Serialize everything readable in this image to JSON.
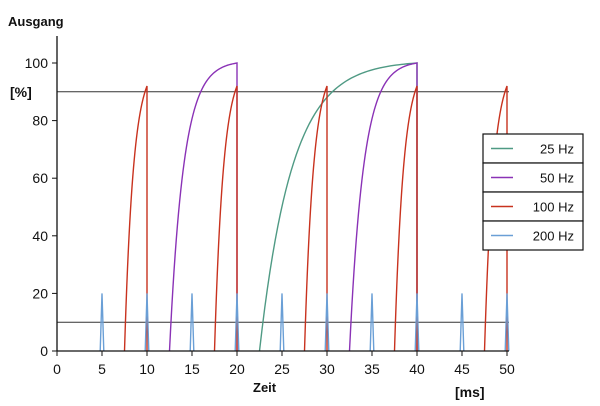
{
  "chart_data": {
    "type": "line",
    "title": "",
    "ylabel_top": "Ausgang",
    "ylabel_unit": "[%]",
    "xlabel": "Zeit",
    "xlabel_unit": "[ms]",
    "xlim": [
      0,
      50
    ],
    "ylim": [
      0,
      100
    ],
    "x_ticks": [
      0,
      5,
      10,
      15,
      20,
      25,
      30,
      35,
      40,
      45,
      50
    ],
    "y_ticks": [
      0,
      20,
      40,
      60,
      80,
      100
    ],
    "grid": false,
    "legend_position": "right",
    "reference_lines": [
      {
        "y": 90,
        "color": "#333333"
      },
      {
        "y": 10,
        "color": "#333333"
      }
    ],
    "series": [
      {
        "name": "25 Hz",
        "color": "#4f9a84",
        "pulses": [
          {
            "start": 22.5,
            "end": 40,
            "peak": 100
          }
        ]
      },
      {
        "name": "50 Hz",
        "color": "#8a32b6",
        "pulses": [
          {
            "start": 12.5,
            "end": 20,
            "peak": 100
          },
          {
            "start": 32.5,
            "end": 40,
            "peak": 100
          }
        ]
      },
      {
        "name": "100 Hz",
        "color": "#c8321e",
        "pulses": [
          {
            "start": 7.5,
            "end": 10,
            "peak": 92
          },
          {
            "start": 17.5,
            "end": 20,
            "peak": 92
          },
          {
            "start": 27.5,
            "end": 30,
            "peak": 92
          },
          {
            "start": 37.5,
            "end": 40,
            "peak": 92
          },
          {
            "start": 47.5,
            "end": 50,
            "peak": 92
          }
        ]
      },
      {
        "name": "200 Hz",
        "color": "#6a9fd6",
        "pulses": [
          {
            "start": 4.8,
            "end": 5.2,
            "peak": 20
          },
          {
            "start": 9.8,
            "end": 10.2,
            "peak": 20
          },
          {
            "start": 14.8,
            "end": 15.2,
            "peak": 20
          },
          {
            "start": 19.8,
            "end": 20.2,
            "peak": 20
          },
          {
            "start": 24.8,
            "end": 25.2,
            "peak": 20
          },
          {
            "start": 29.8,
            "end": 30.2,
            "peak": 20
          },
          {
            "start": 34.8,
            "end": 35.2,
            "peak": 20
          },
          {
            "start": 39.8,
            "end": 40.2,
            "peak": 20
          },
          {
            "start": 44.8,
            "end": 45.2,
            "peak": 20
          },
          {
            "start": 49.8,
            "end": 50.2,
            "peak": 20
          }
        ]
      }
    ]
  }
}
